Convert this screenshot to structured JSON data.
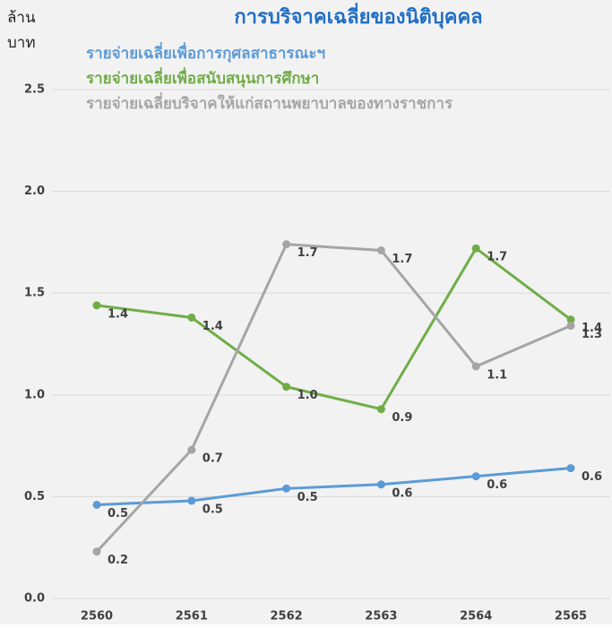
{
  "chart_data": {
    "type": "line",
    "title": "การบริจาคเฉลี่ยของนิติบุคคล",
    "y_label": [
      "ล้าน",
      "บาท"
    ],
    "categories": [
      "2560",
      "2561",
      "2562",
      "2563",
      "2564",
      "2565"
    ],
    "series": [
      {
        "name": "รายจ่ายเฉลี่ยเพื่อการกุศลสาธารณะฯ",
        "color": "#5b9bd5",
        "values": [
          0.46,
          0.48,
          0.54,
          0.56,
          0.6,
          0.64
        ],
        "value_labels": [
          "0.5",
          "0.5",
          "0.5",
          "0.6",
          "0.6",
          "0.6"
        ]
      },
      {
        "name": "รายจ่ายเฉลี่ยเพื่อสนับสนุนการศึกษา",
        "color": "#70ad47",
        "values": [
          1.44,
          1.38,
          1.04,
          0.93,
          1.72,
          1.37
        ],
        "value_labels": [
          "1.4",
          "1.4",
          "1.0",
          "0.9",
          "1.7",
          "1.4"
        ]
      },
      {
        "name": "รายจ่ายเฉลี่ยบริจาคให้แก่สถานพยาบาลของทางราชการ",
        "color": "#a5a5a5",
        "values": [
          0.23,
          0.73,
          1.74,
          1.71,
          1.14,
          1.34
        ],
        "value_labels": [
          "0.2",
          "0.7",
          "1.7",
          "1.7",
          "1.1",
          "1.3"
        ]
      }
    ],
    "ylim": [
      0,
      2.5
    ],
    "yticks": [
      {
        "value": 0,
        "label": "0.0"
      },
      0.5,
      {
        "value": 1,
        "label": "1.0"
      },
      1.5,
      {
        "value": 2,
        "label": "2.0"
      },
      2.5
    ],
    "grid": true
  }
}
